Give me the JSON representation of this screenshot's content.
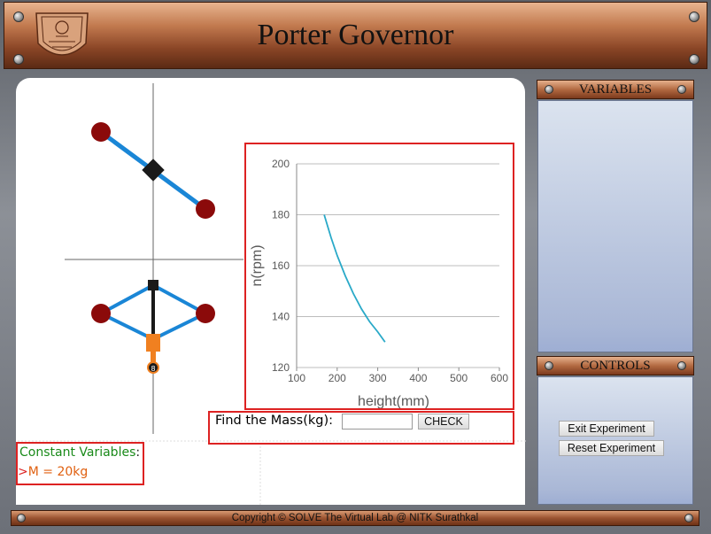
{
  "header": {
    "title": "Porter Governor",
    "logo": "institute-emblem"
  },
  "variables_panel": {
    "title": "VARIABLES"
  },
  "controls_panel": {
    "title": "CONTROLS",
    "exit_label": "Exit Experiment",
    "reset_label": "Reset Experiment"
  },
  "mass_form": {
    "label": "Find the Mass(kg):",
    "value": "",
    "check_label": "CHECK"
  },
  "constants": {
    "title": "Constant Variables",
    "title_suffix": ":",
    "m_value": "M = 20kg",
    "bullet": ">"
  },
  "footer": {
    "text": "Copyright © SOLVE The Virtual Lab @ NITK Surathkal"
  },
  "colors": {
    "ball": "#8b0a0a",
    "arm": "#1a86d6",
    "sleeve": "#f08020",
    "curve": "#29a9c8",
    "alert_border": "#dd2222",
    "constant_title": "#1a8a1a",
    "constant_value": "#e06010"
  },
  "chart_data": {
    "type": "line",
    "xlabel": "height(mm)",
    "ylabel": "n(rpm)",
    "xlim": [
      100,
      600
    ],
    "ylim": [
      120,
      200
    ],
    "xticks": [
      100,
      200,
      300,
      400,
      500,
      600
    ],
    "yticks": [
      120,
      140,
      160,
      180,
      200
    ],
    "grid": "horizontal",
    "x": [
      168,
      185,
      200,
      220,
      240,
      260,
      280,
      300,
      318
    ],
    "y": [
      180,
      171,
      164,
      156,
      149,
      143,
      138,
      134,
      130
    ]
  }
}
